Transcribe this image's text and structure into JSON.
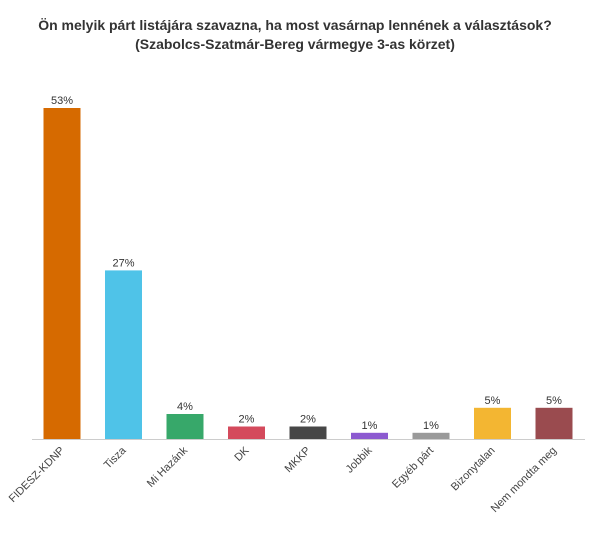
{
  "chart_data": {
    "type": "bar",
    "title_line1": "Ön melyik párt listájára szavazna, ha most vasárnap lennének a választások?",
    "title_line2": "(Szabolcs-Szatmár-Bereg vármegye 3-as körzet)",
    "xlabel": "",
    "ylabel": "",
    "ylim": [
      0,
      60
    ],
    "grid": false,
    "categories": [
      "FIDESZ-KDNP",
      "Tisza",
      "Mi Hazánk",
      "DK",
      "MKKP",
      "Jobbik",
      "Egyéb párt",
      "Bizonytalan",
      "Nem mondta meg"
    ],
    "values": [
      53,
      27,
      4,
      2,
      2,
      1,
      1,
      5,
      5
    ],
    "data_labels": [
      "53%",
      "27%",
      "4%",
      "2%",
      "2%",
      "1%",
      "1%",
      "5%",
      "5%"
    ],
    "colors": [
      "#d66a00",
      "#4fc3e8",
      "#37a86a",
      "#d44a5c",
      "#474747",
      "#8c5ad0",
      "#9a9a9a",
      "#f3b632",
      "#9a4b4f"
    ]
  }
}
